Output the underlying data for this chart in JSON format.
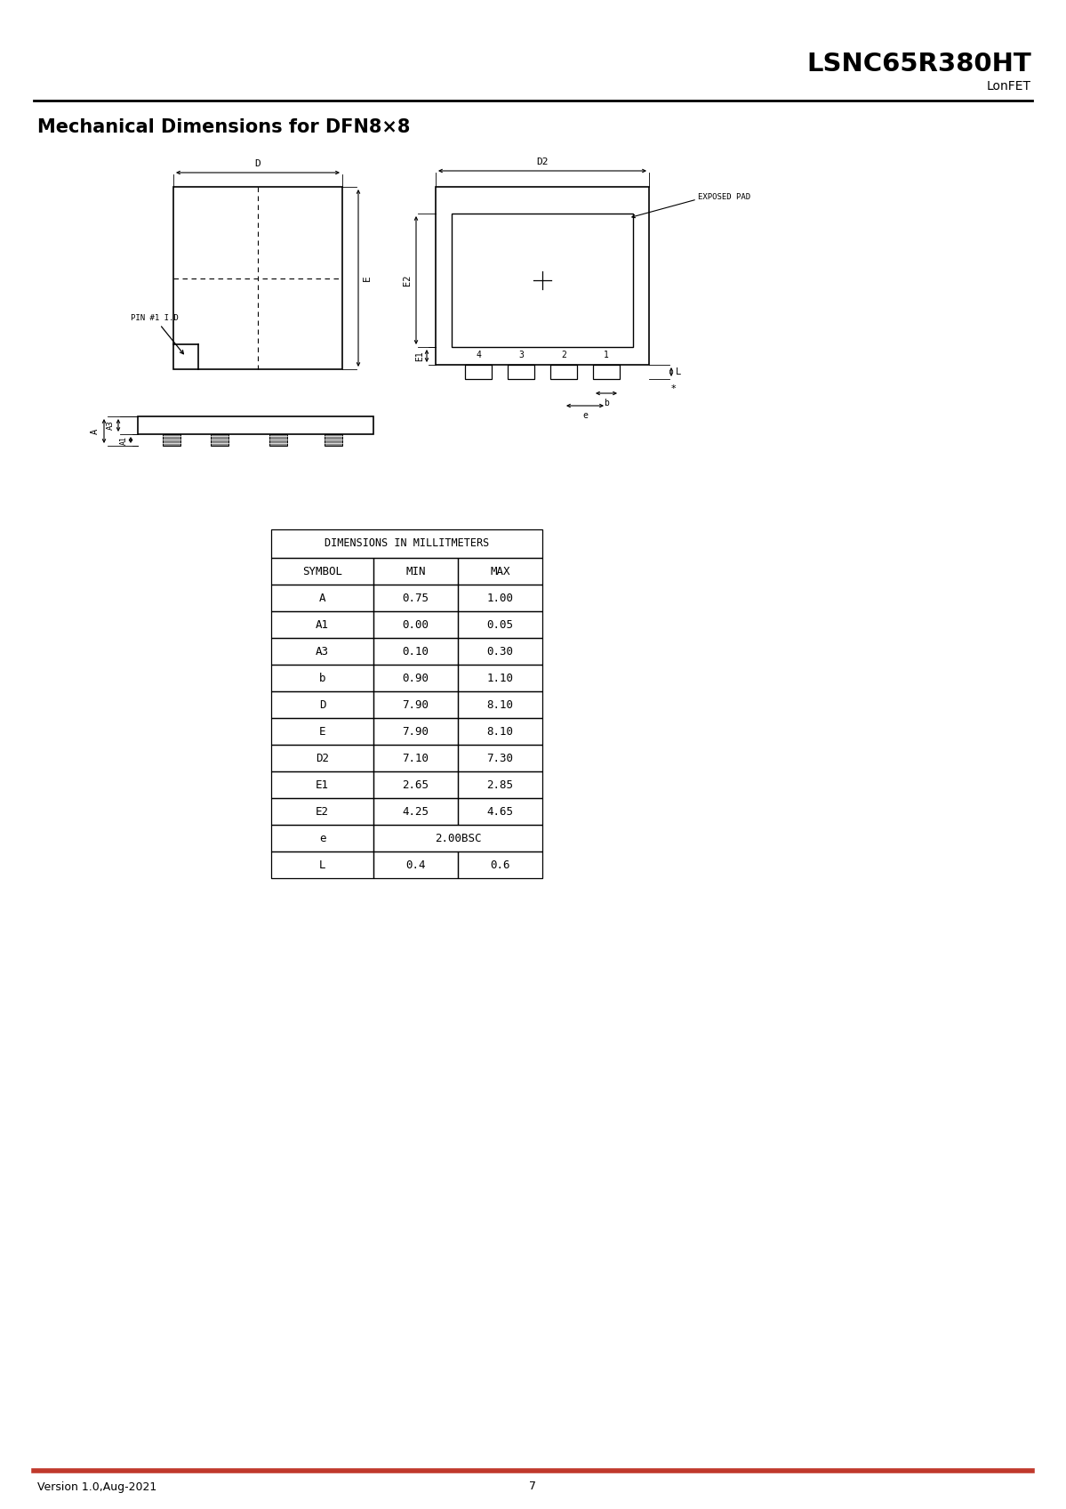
{
  "title": "LSNC65R380HT",
  "subtitle": "LonFET",
  "section_title": "Mechanical Dimensions for DFN8×8",
  "footer_left": "Version 1.0,Aug-2021",
  "footer_center": "7",
  "table_header": "DIMENSIONS IN MILLITMETERS",
  "table_cols": [
    "SYMBOL",
    "MIN",
    "MAX"
  ],
  "table_rows": [
    [
      "A",
      "0.75",
      "1.00"
    ],
    [
      "A1",
      "0.00",
      "0.05"
    ],
    [
      "A3",
      "0.10",
      "0.30"
    ],
    [
      "b",
      "0.90",
      "1.10"
    ],
    [
      "D",
      "7.90",
      "8.10"
    ],
    [
      "E",
      "7.90",
      "8.10"
    ],
    [
      "D2",
      "7.10",
      "7.30"
    ],
    [
      "E1",
      "2.65",
      "2.85"
    ],
    [
      "E2",
      "4.25",
      "4.65"
    ],
    [
      "e",
      "2.00BSC",
      ""
    ],
    [
      "L",
      "0.4",
      "0.6"
    ]
  ],
  "bg_color": "#ffffff",
  "line_color": "#000000",
  "accent_color": "#c0392b"
}
